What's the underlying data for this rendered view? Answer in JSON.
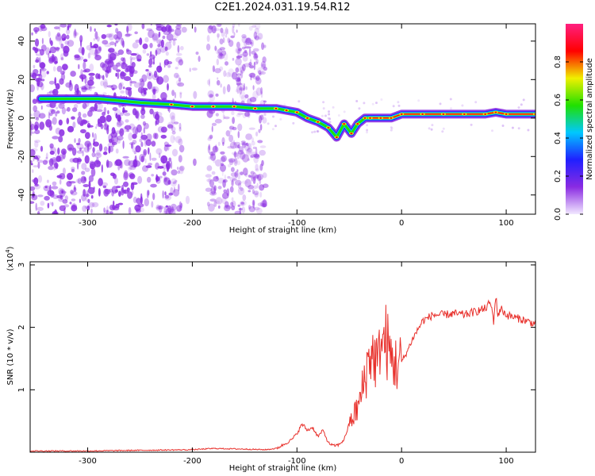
{
  "title": "C2E1.2024.031.19.54.R12",
  "colors": {
    "snr_line": "#e8312c",
    "spectrogram_scatter": "#8a2be2",
    "axis": "#000000"
  },
  "chart_data": [
    {
      "type": "heatmap",
      "xlabel": "Height of straight line (km)",
      "ylabel": "Frequency (Hz)",
      "xlim": [
        -355,
        128
      ],
      "ylim": [
        -50,
        49
      ],
      "x_ticks": [
        -300,
        -200,
        -100,
        0,
        100
      ],
      "x_tick_labels": [
        "-300",
        "-200",
        "-100",
        "0",
        "100"
      ],
      "y_ticks": [
        -40,
        -20,
        0,
        20,
        40
      ],
      "y_tick_labels": [
        "-40",
        "-20",
        "0",
        "20",
        "40"
      ],
      "colorbar": {
        "label": "Normalized spectral amplitude",
        "range": [
          0.0,
          1.0
        ],
        "ticks": [
          0.0,
          0.2,
          0.4,
          0.6,
          0.8
        ],
        "tick_labels": [
          "0.0",
          "0.2",
          "0.4",
          "0.6",
          "0.8"
        ],
        "colormap": [
          "#f2e8ff",
          "#8a2be2",
          "#2020ff",
          "#00c8ff",
          "#20e000",
          "#f0f000",
          "#ff0000",
          "#ff2080"
        ]
      },
      "ridge": {
        "x": [
          -345,
          -330,
          -290,
          -250,
          -220,
          -200,
          -180,
          -160,
          -140,
          -120,
          -110,
          -100,
          -90,
          -80,
          -70,
          -62,
          -55,
          -48,
          -42,
          -35,
          -30,
          -20,
          -10,
          0,
          20,
          40,
          60,
          80,
          90,
          100,
          128
        ],
        "y": [
          10,
          10,
          10,
          8,
          7,
          6,
          6,
          6,
          5,
          5,
          4,
          3,
          0,
          -2,
          -5,
          -10,
          -3,
          -8,
          -3,
          0,
          0,
          0,
          0,
          2,
          2,
          2,
          2,
          2,
          3,
          2,
          2
        ]
      }
    },
    {
      "type": "line",
      "xlabel": "Height of straight line (km)",
      "ylabel": "SNR (10 * v/v)",
      "y_multiplier_label": "(x10",
      "y_multiplier_exp": "4",
      "y_multiplier_close": ")",
      "xlim": [
        -355,
        128
      ],
      "ylim": [
        0,
        3.05
      ],
      "x_ticks": [
        -300,
        -200,
        -100,
        0,
        100
      ],
      "x_tick_labels": [
        "-300",
        "-200",
        "-100",
        "0",
        "100"
      ],
      "y_ticks": [
        1,
        2,
        3
      ],
      "y_tick_labels": [
        "1",
        "2",
        "3"
      ],
      "series": [
        {
          "x": [
            -355,
            -300,
            -250,
            -200,
            -180,
            -150,
            -130,
            -120,
            -115,
            -110,
            -105,
            -100,
            -95,
            -90,
            -85,
            -80,
            -75,
            -70,
            -65,
            -60,
            -55,
            -50,
            -45,
            -40,
            -35,
            -30,
            -25,
            -22,
            -20,
            -18,
            -15,
            -12,
            -10,
            -5,
            0,
            5,
            10,
            15,
            20,
            25,
            30,
            40,
            50,
            60,
            70,
            80,
            85,
            88,
            90,
            92,
            95,
            100,
            110,
            120,
            128
          ],
          "y": [
            0.02,
            0.02,
            0.03,
            0.04,
            0.06,
            0.05,
            0.04,
            0.06,
            0.1,
            0.15,
            0.2,
            0.3,
            0.45,
            0.35,
            0.4,
            0.25,
            0.35,
            0.15,
            0.1,
            0.12,
            0.2,
            0.45,
            0.6,
            0.8,
            1.2,
            1.6,
            1.5,
            1.4,
            2.0,
            1.7,
            1.8,
            1.6,
            1.5,
            1.4,
            1.45,
            1.6,
            1.8,
            1.95,
            2.1,
            2.15,
            2.2,
            2.2,
            2.22,
            2.2,
            2.25,
            2.3,
            2.4,
            2.1,
            2.5,
            2.2,
            2.3,
            2.2,
            2.15,
            2.1,
            2.05
          ]
        }
      ]
    }
  ]
}
